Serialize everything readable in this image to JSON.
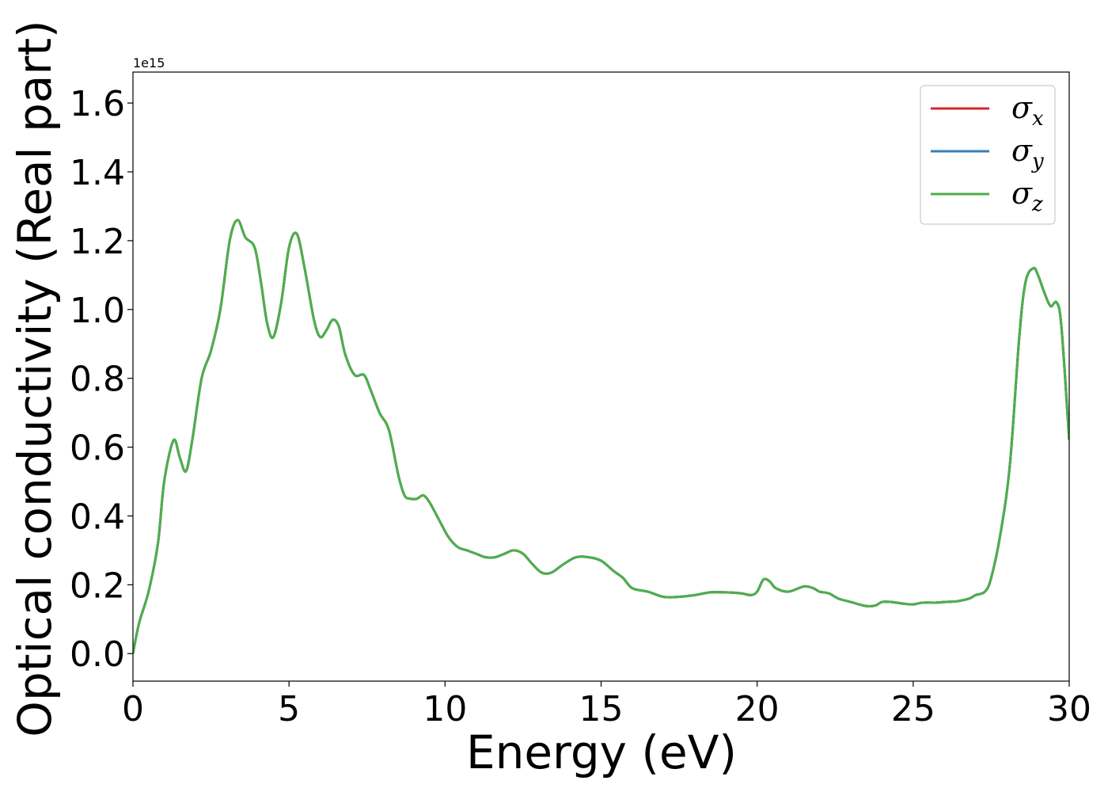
{
  "chart_data": {
    "type": "line",
    "xlabel": "Energy (eV)",
    "ylabel": "Optical conductivity (Real part)",
    "y_offset_label": "1e15",
    "xlim": [
      0,
      30
    ],
    "ylim": [
      -0.08,
      1.69
    ],
    "x_ticks": [
      0,
      5,
      10,
      15,
      20,
      25,
      30
    ],
    "x_tick_labels": [
      "0",
      "5",
      "10",
      "15",
      "20",
      "25",
      "30"
    ],
    "y_ticks": [
      0.0,
      0.2,
      0.4,
      0.6,
      0.8,
      1.0,
      1.2,
      1.4,
      1.6
    ],
    "y_tick_labels": [
      "0.0",
      "0.2",
      "0.4",
      "0.6",
      "0.8",
      "1.0",
      "1.2",
      "1.4",
      "1.6"
    ],
    "grid": false,
    "legend_position": "top-right",
    "x": [
      0,
      0.2,
      0.5,
      0.8,
      1.0,
      1.3,
      1.5,
      1.7,
      1.9,
      2.2,
      2.5,
      2.8,
      3.1,
      3.35,
      3.6,
      3.9,
      4.1,
      4.3,
      4.5,
      4.75,
      5.0,
      5.25,
      5.5,
      5.8,
      6.0,
      6.2,
      6.4,
      6.6,
      6.8,
      7.1,
      7.4,
      7.6,
      7.9,
      8.2,
      8.5,
      8.7,
      8.9,
      9.1,
      9.3,
      9.5,
      9.8,
      10.1,
      10.4,
      10.7,
      11.0,
      11.3,
      11.6,
      11.9,
      12.2,
      12.5,
      12.8,
      13.1,
      13.4,
      13.8,
      14.2,
      14.6,
      15.0,
      15.4,
      15.7,
      16.0,
      16.5,
      17.0,
      17.5,
      18.0,
      18.5,
      19.0,
      19.5,
      19.8,
      20.0,
      20.2,
      20.4,
      20.6,
      21.0,
      21.5,
      21.8,
      22.0,
      22.3,
      22.6,
      23.0,
      23.5,
      23.8,
      24.0,
      24.3,
      24.7,
      25.0,
      25.3,
      25.7,
      26.0,
      26.4,
      26.8,
      27.0,
      27.3,
      27.5,
      27.8,
      28.1,
      28.4,
      28.6,
      28.85,
      29.0,
      29.2,
      29.4,
      29.6,
      29.75,
      30.0
    ],
    "series": [
      {
        "name": "σx",
        "color": "#d62728",
        "y": [
          0.0,
          0.09,
          0.18,
          0.32,
          0.5,
          0.62,
          0.57,
          0.53,
          0.62,
          0.8,
          0.88,
          1.0,
          1.2,
          1.26,
          1.21,
          1.18,
          1.08,
          0.96,
          0.92,
          1.02,
          1.18,
          1.22,
          1.12,
          0.97,
          0.92,
          0.94,
          0.97,
          0.95,
          0.87,
          0.81,
          0.81,
          0.77,
          0.7,
          0.65,
          0.52,
          0.46,
          0.45,
          0.45,
          0.46,
          0.44,
          0.39,
          0.34,
          0.31,
          0.3,
          0.29,
          0.28,
          0.28,
          0.29,
          0.3,
          0.29,
          0.26,
          0.235,
          0.235,
          0.26,
          0.28,
          0.28,
          0.27,
          0.24,
          0.22,
          0.19,
          0.18,
          0.165,
          0.165,
          0.17,
          0.178,
          0.178,
          0.175,
          0.17,
          0.18,
          0.215,
          0.21,
          0.19,
          0.18,
          0.195,
          0.19,
          0.18,
          0.175,
          0.16,
          0.15,
          0.138,
          0.14,
          0.15,
          0.15,
          0.145,
          0.143,
          0.148,
          0.148,
          0.15,
          0.152,
          0.16,
          0.17,
          0.18,
          0.22,
          0.35,
          0.55,
          0.92,
          1.08,
          1.12,
          1.1,
          1.05,
          1.01,
          1.02,
          0.95,
          0.62
        ]
      },
      {
        "name": "σy",
        "color": "#377eb8",
        "y": [
          0.0,
          0.09,
          0.18,
          0.32,
          0.5,
          0.62,
          0.57,
          0.53,
          0.62,
          0.8,
          0.88,
          1.0,
          1.2,
          1.26,
          1.21,
          1.18,
          1.08,
          0.96,
          0.92,
          1.02,
          1.18,
          1.22,
          1.12,
          0.97,
          0.92,
          0.94,
          0.97,
          0.95,
          0.87,
          0.81,
          0.81,
          0.77,
          0.7,
          0.65,
          0.52,
          0.46,
          0.45,
          0.45,
          0.46,
          0.44,
          0.39,
          0.34,
          0.31,
          0.3,
          0.29,
          0.28,
          0.28,
          0.29,
          0.3,
          0.29,
          0.26,
          0.235,
          0.235,
          0.26,
          0.28,
          0.28,
          0.27,
          0.24,
          0.22,
          0.19,
          0.18,
          0.165,
          0.165,
          0.17,
          0.178,
          0.178,
          0.175,
          0.17,
          0.18,
          0.215,
          0.21,
          0.19,
          0.18,
          0.195,
          0.19,
          0.18,
          0.175,
          0.16,
          0.15,
          0.138,
          0.14,
          0.15,
          0.15,
          0.145,
          0.143,
          0.148,
          0.148,
          0.15,
          0.152,
          0.16,
          0.17,
          0.18,
          0.22,
          0.35,
          0.55,
          0.92,
          1.08,
          1.12,
          1.1,
          1.05,
          1.01,
          1.02,
          0.95,
          0.62
        ]
      },
      {
        "name": "σz",
        "color": "#4daf4a",
        "y": [
          0.0,
          0.09,
          0.18,
          0.32,
          0.5,
          0.62,
          0.57,
          0.53,
          0.62,
          0.8,
          0.88,
          1.0,
          1.2,
          1.26,
          1.21,
          1.18,
          1.08,
          0.96,
          0.92,
          1.02,
          1.18,
          1.22,
          1.12,
          0.97,
          0.92,
          0.94,
          0.97,
          0.95,
          0.87,
          0.81,
          0.81,
          0.77,
          0.7,
          0.65,
          0.52,
          0.46,
          0.45,
          0.45,
          0.46,
          0.44,
          0.39,
          0.34,
          0.31,
          0.3,
          0.29,
          0.28,
          0.28,
          0.29,
          0.3,
          0.29,
          0.26,
          0.235,
          0.235,
          0.26,
          0.28,
          0.28,
          0.27,
          0.24,
          0.22,
          0.19,
          0.18,
          0.165,
          0.165,
          0.17,
          0.178,
          0.178,
          0.175,
          0.17,
          0.18,
          0.215,
          0.21,
          0.19,
          0.18,
          0.195,
          0.19,
          0.18,
          0.175,
          0.16,
          0.15,
          0.138,
          0.14,
          0.15,
          0.15,
          0.145,
          0.143,
          0.148,
          0.148,
          0.15,
          0.152,
          0.16,
          0.17,
          0.18,
          0.22,
          0.35,
          0.55,
          0.92,
          1.08,
          1.12,
          1.1,
          1.05,
          1.01,
          1.02,
          0.95,
          0.62
        ]
      }
    ],
    "legend": [
      {
        "symbol": "σ",
        "subscript": "x"
      },
      {
        "symbol": "σ",
        "subscript": "y"
      },
      {
        "symbol": "σ",
        "subscript": "z"
      }
    ]
  }
}
